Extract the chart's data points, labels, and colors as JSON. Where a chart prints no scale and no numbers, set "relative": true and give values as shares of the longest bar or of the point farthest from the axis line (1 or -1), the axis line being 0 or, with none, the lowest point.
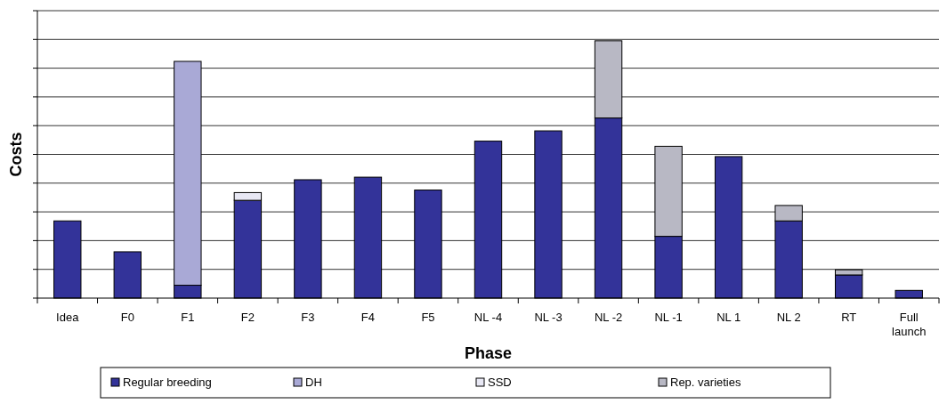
{
  "chart_data": {
    "type": "bar",
    "stacked": true,
    "relative": true,
    "xlabel": "Phase",
    "ylabel": "Costs",
    "grid": true,
    "legend": "bottom",
    "categories": [
      "Idea",
      "F0",
      "F1",
      "F2",
      "F3",
      "F4",
      "F5",
      "NL -4",
      "NL -3",
      "NL -2",
      "NL -1",
      "NL 1",
      "NL 2",
      "RT",
      "Full launch"
    ],
    "series": [
      {
        "name": "Regular breeding",
        "color": "#333399",
        "values": [
          0.3,
          0.18,
          0.05,
          0.38,
          0.46,
          0.47,
          0.42,
          0.61,
          0.65,
          0.7,
          0.24,
          0.55,
          0.3,
          0.09,
          0.03
        ]
      },
      {
        "name": "DH",
        "color": "#a9a9d6",
        "values": [
          null,
          null,
          0.87,
          null,
          null,
          null,
          null,
          null,
          null,
          null,
          null,
          null,
          null,
          null,
          null
        ]
      },
      {
        "name": "SSD",
        "color": "#e8e8f4",
        "values": [
          null,
          null,
          null,
          0.03,
          null,
          null,
          null,
          null,
          null,
          null,
          null,
          null,
          null,
          null,
          null
        ]
      },
      {
        "name": "Rep. varieties",
        "color": "#b8b8c4",
        "values": [
          null,
          null,
          null,
          null,
          null,
          null,
          null,
          null,
          null,
          0.3,
          0.35,
          null,
          0.06,
          0.02,
          null
        ]
      }
    ]
  }
}
